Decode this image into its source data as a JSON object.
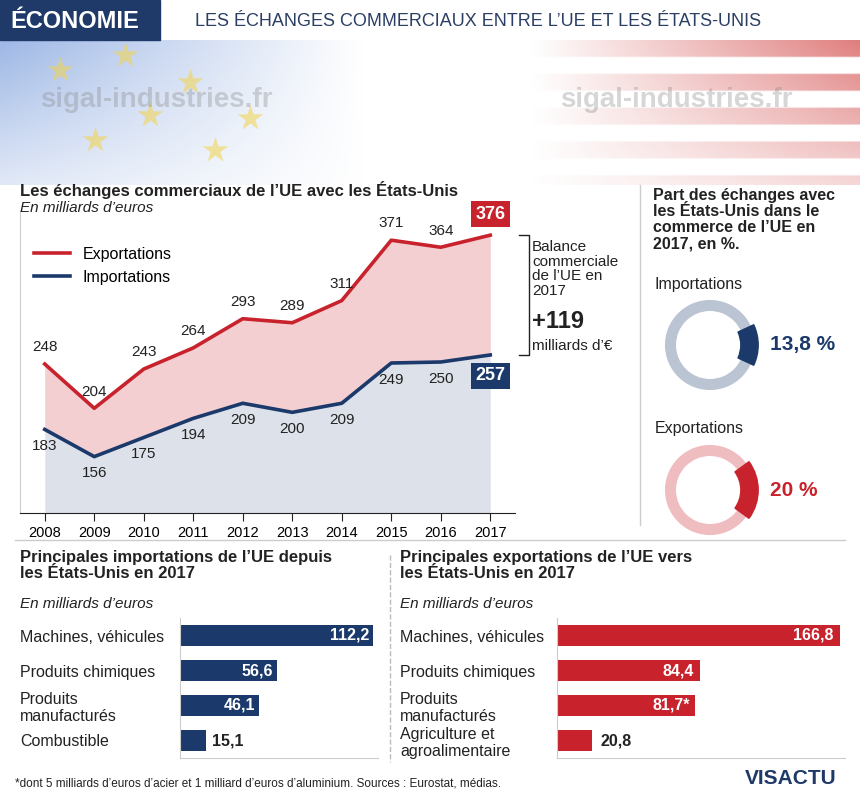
{
  "header": {
    "section": "ÉCONOMIE",
    "title": "LES ÉCHANGES COMMERCIAUX ENTRE L’UE ET LES ÉTATS-UNIS"
  },
  "watermark": "sigal-industries.fr",
  "chart_data": [
    {
      "type": "line",
      "title": "Les échanges commerciaux de l’UE avec les États-Unis",
      "subtitle": "En milliards d’euros",
      "x": [
        2008,
        2009,
        2010,
        2011,
        2012,
        2013,
        2014,
        2015,
        2016,
        2017
      ],
      "xlim": [
        2007.5,
        2017.5
      ],
      "xticks": [
        2008,
        2009,
        2010,
        2011,
        2012,
        2013,
        2014,
        2015,
        2016,
        2017
      ],
      "ylim": [
        100,
        400
      ],
      "tick_labels": "x",
      "legend": "upper left",
      "data_labels": true,
      "series": [
        {
          "name": "Exportations",
          "color": "#c8232c",
          "values": [
            248,
            204,
            243,
            264,
            293,
            289,
            311,
            371,
            364,
            376
          ]
        },
        {
          "name": "Importations",
          "color": "#1b3a6b",
          "values": [
            183,
            156,
            175,
            194,
            209,
            200,
            209,
            249,
            250,
            257
          ]
        }
      ],
      "annotation": {
        "text": "Balance commerciale de l’UE en 2017",
        "value": 119,
        "value_label": "+119",
        "unit": "milliards d’€"
      }
    },
    {
      "type": "pie",
      "title": "Part des échanges avec les États-Unis dans le commerce de l’UE en 2017, en %.",
      "categories": [
        "Importations",
        "Exportations"
      ],
      "values": [
        13.8,
        20
      ],
      "value_labels": [
        "13,8 %",
        "20 %"
      ],
      "colors": [
        "#1b3a6b",
        "#c8232c"
      ],
      "data_labels": true
    },
    {
      "type": "bar",
      "orientation": "horizontal",
      "title": "Principales importations de l’UE depuis les États-Unis en 2017",
      "subtitle": "En milliards d’euros",
      "categories": [
        "Machines, véhicules",
        "Produits chimiques",
        "Produits manufacturés",
        "Combustible"
      ],
      "values": [
        112.2,
        56.6,
        46.1,
        15.1
      ],
      "value_labels": [
        "112,2",
        "56,6",
        "46,1",
        "15,1"
      ],
      "color": "#1b3a6b",
      "xlim": [
        0,
        115
      ],
      "tick_labels": "y",
      "data_labels": true
    },
    {
      "type": "bar",
      "orientation": "horizontal",
      "title": "Principales exportations de l’UE vers les États-Unis en 2017",
      "subtitle": "En milliards d’euros",
      "categories": [
        "Machines, véhicules",
        "Produits chimiques",
        "Produits manufacturés",
        "Agriculture et agroalimentaire"
      ],
      "values": [
        166.8,
        84.4,
        81.7,
        20.8
      ],
      "value_labels": [
        "166,8",
        "84,4",
        "81,7*",
        "20,8"
      ],
      "color": "#c8232c",
      "xlim": [
        0,
        170
      ],
      "tick_labels": "y",
      "data_labels": true
    }
  ],
  "footnote": "*dont 5 milliards d’euros d’acier et 1 milliard d’euros d’aluminium. Sources : Eurostat, médias.",
  "brand": "VISACTU"
}
